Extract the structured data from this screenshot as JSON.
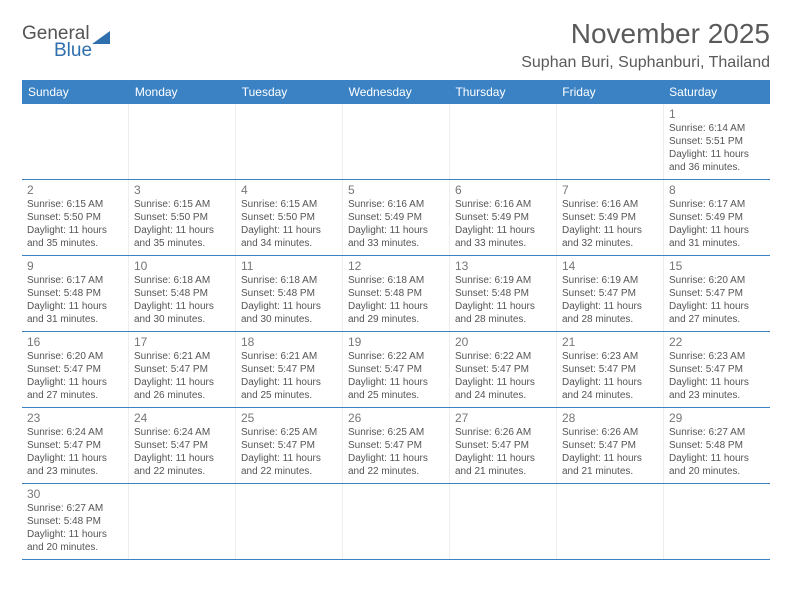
{
  "brand": {
    "part1": "General",
    "part2": "Blue"
  },
  "title": "November 2025",
  "location": "Suphan Buri, Suphanburi, Thailand",
  "colors": {
    "header_bg": "#3a82c4",
    "header_text": "#ffffff",
    "border": "#3a82c4",
    "text": "#555555",
    "daynum": "#777777"
  },
  "weekdays": [
    "Sunday",
    "Monday",
    "Tuesday",
    "Wednesday",
    "Thursday",
    "Friday",
    "Saturday"
  ],
  "weeks": [
    [
      null,
      null,
      null,
      null,
      null,
      null,
      {
        "n": "1",
        "sr": "6:14 AM",
        "ss": "5:51 PM",
        "dl": "11 hours and 36 minutes."
      }
    ],
    [
      {
        "n": "2",
        "sr": "6:15 AM",
        "ss": "5:50 PM",
        "dl": "11 hours and 35 minutes."
      },
      {
        "n": "3",
        "sr": "6:15 AM",
        "ss": "5:50 PM",
        "dl": "11 hours and 35 minutes."
      },
      {
        "n": "4",
        "sr": "6:15 AM",
        "ss": "5:50 PM",
        "dl": "11 hours and 34 minutes."
      },
      {
        "n": "5",
        "sr": "6:16 AM",
        "ss": "5:49 PM",
        "dl": "11 hours and 33 minutes."
      },
      {
        "n": "6",
        "sr": "6:16 AM",
        "ss": "5:49 PM",
        "dl": "11 hours and 33 minutes."
      },
      {
        "n": "7",
        "sr": "6:16 AM",
        "ss": "5:49 PM",
        "dl": "11 hours and 32 minutes."
      },
      {
        "n": "8",
        "sr": "6:17 AM",
        "ss": "5:49 PM",
        "dl": "11 hours and 31 minutes."
      }
    ],
    [
      {
        "n": "9",
        "sr": "6:17 AM",
        "ss": "5:48 PM",
        "dl": "11 hours and 31 minutes."
      },
      {
        "n": "10",
        "sr": "6:18 AM",
        "ss": "5:48 PM",
        "dl": "11 hours and 30 minutes."
      },
      {
        "n": "11",
        "sr": "6:18 AM",
        "ss": "5:48 PM",
        "dl": "11 hours and 30 minutes."
      },
      {
        "n": "12",
        "sr": "6:18 AM",
        "ss": "5:48 PM",
        "dl": "11 hours and 29 minutes."
      },
      {
        "n": "13",
        "sr": "6:19 AM",
        "ss": "5:48 PM",
        "dl": "11 hours and 28 minutes."
      },
      {
        "n": "14",
        "sr": "6:19 AM",
        "ss": "5:47 PM",
        "dl": "11 hours and 28 minutes."
      },
      {
        "n": "15",
        "sr": "6:20 AM",
        "ss": "5:47 PM",
        "dl": "11 hours and 27 minutes."
      }
    ],
    [
      {
        "n": "16",
        "sr": "6:20 AM",
        "ss": "5:47 PM",
        "dl": "11 hours and 27 minutes."
      },
      {
        "n": "17",
        "sr": "6:21 AM",
        "ss": "5:47 PM",
        "dl": "11 hours and 26 minutes."
      },
      {
        "n": "18",
        "sr": "6:21 AM",
        "ss": "5:47 PM",
        "dl": "11 hours and 25 minutes."
      },
      {
        "n": "19",
        "sr": "6:22 AM",
        "ss": "5:47 PM",
        "dl": "11 hours and 25 minutes."
      },
      {
        "n": "20",
        "sr": "6:22 AM",
        "ss": "5:47 PM",
        "dl": "11 hours and 24 minutes."
      },
      {
        "n": "21",
        "sr": "6:23 AM",
        "ss": "5:47 PM",
        "dl": "11 hours and 24 minutes."
      },
      {
        "n": "22",
        "sr": "6:23 AM",
        "ss": "5:47 PM",
        "dl": "11 hours and 23 minutes."
      }
    ],
    [
      {
        "n": "23",
        "sr": "6:24 AM",
        "ss": "5:47 PM",
        "dl": "11 hours and 23 minutes."
      },
      {
        "n": "24",
        "sr": "6:24 AM",
        "ss": "5:47 PM",
        "dl": "11 hours and 22 minutes."
      },
      {
        "n": "25",
        "sr": "6:25 AM",
        "ss": "5:47 PM",
        "dl": "11 hours and 22 minutes."
      },
      {
        "n": "26",
        "sr": "6:25 AM",
        "ss": "5:47 PM",
        "dl": "11 hours and 22 minutes."
      },
      {
        "n": "27",
        "sr": "6:26 AM",
        "ss": "5:47 PM",
        "dl": "11 hours and 21 minutes."
      },
      {
        "n": "28",
        "sr": "6:26 AM",
        "ss": "5:47 PM",
        "dl": "11 hours and 21 minutes."
      },
      {
        "n": "29",
        "sr": "6:27 AM",
        "ss": "5:48 PM",
        "dl": "11 hours and 20 minutes."
      }
    ],
    [
      {
        "n": "30",
        "sr": "6:27 AM",
        "ss": "5:48 PM",
        "dl": "11 hours and 20 minutes."
      },
      null,
      null,
      null,
      null,
      null,
      null
    ]
  ],
  "labels": {
    "sunrise": "Sunrise:",
    "sunset": "Sunset:",
    "daylight": "Daylight:"
  }
}
